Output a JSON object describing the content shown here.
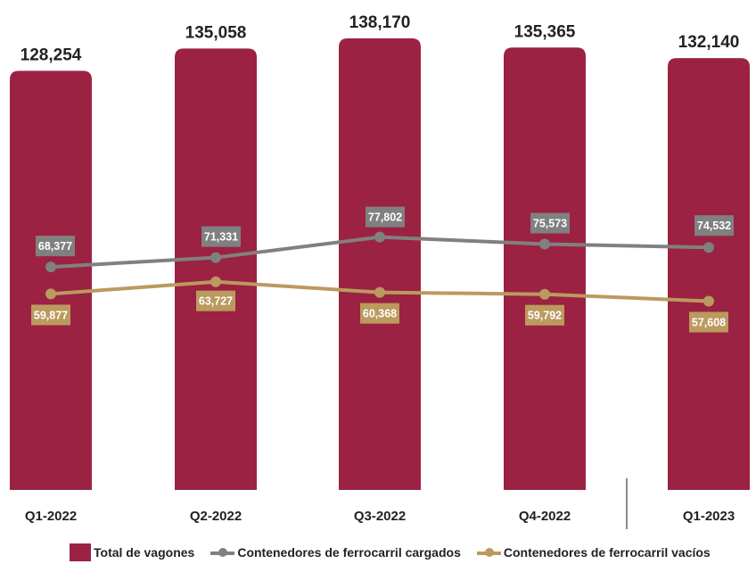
{
  "chart_data": {
    "type": "bar",
    "categories": [
      "Q1-2022",
      "Q2-2022",
      "Q3-2022",
      "Q4-2022",
      "Q1-2023"
    ],
    "bars": {
      "name": "Total de vagones",
      "values": [
        128254,
        135058,
        138170,
        135365,
        132140
      ],
      "labels": [
        "128,254",
        "135,058",
        "138,170",
        "135,365",
        "132,140"
      ],
      "color": "#9B2242"
    },
    "series": [
      {
        "name": "Contenedores de ferrocarril cargados",
        "type": "line",
        "values": [
          68377,
          71331,
          77802,
          75573,
          74532
        ],
        "labels": [
          "68,377",
          "71,331",
          "77,802",
          "75,573",
          "74,532"
        ],
        "color": "#808080"
      },
      {
        "name": "Contenedores de ferrocarril vacíos",
        "type": "line",
        "values": [
          59877,
          63727,
          60368,
          59792,
          57608
        ],
        "labels": [
          "59,877",
          "63,727",
          "60,368",
          "59,792",
          "57,608"
        ],
        "color": "#BB9A5E"
      }
    ],
    "ylim": [
      0,
      140000
    ],
    "grid": false,
    "legend_position": "bottom",
    "separator_before_last_category": true
  }
}
